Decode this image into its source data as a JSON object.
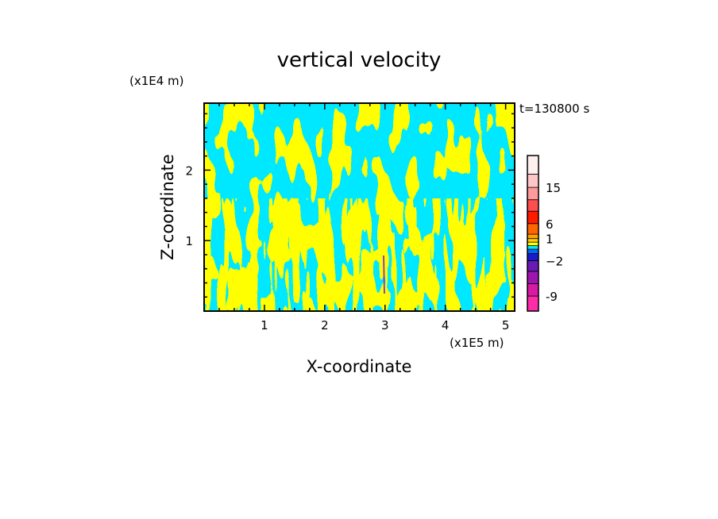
{
  "chart_data": {
    "type": "heatmap",
    "title": "vertical velocity",
    "xlabel": "X-coordinate",
    "ylabel": "Z-coordinate",
    "x_scale_label": "(x1E5 m)",
    "y_scale_label": "(x1E4 m)",
    "time_label": "t=130800 s",
    "xlim": [
      0,
      5.15
    ],
    "ylim": [
      0,
      2.95
    ],
    "x_ticks": [
      1,
      2,
      3,
      4,
      5
    ],
    "y_ticks": [
      1,
      2
    ],
    "x_tick_labels": [
      "1",
      "2",
      "3",
      "4",
      "5"
    ],
    "y_tick_labels": [
      "1",
      "2"
    ],
    "field_description_colors": {
      "positive": "#ffff00",
      "negative": "#00e8ff"
    },
    "colorbar": {
      "levels": [
        -12,
        -9,
        -6,
        -4,
        -2,
        -1,
        -0.5,
        0,
        0.5,
        1,
        3,
        6,
        9,
        12,
        15,
        18,
        21
      ],
      "colors": [
        "#ff2ca8",
        "#d81aa4",
        "#9e16b0",
        "#6a1ab4",
        "#1a1acc",
        "#0066ff",
        "#00e8ff",
        "#ffff00",
        "#ffd000",
        "#ffa000",
        "#ff6600",
        "#ff1a00",
        "#ff4e4e",
        "#ff9a9a",
        "#ffc8c8",
        "#fff0f0"
      ],
      "tick_labels": [
        {
          "value": -9,
          "label": "-9"
        },
        {
          "value": -2,
          "label": "−2"
        },
        {
          "value": 1,
          "label": "1"
        },
        {
          "value": 6,
          "label": "6"
        },
        {
          "value": 15,
          "label": "15"
        }
      ]
    }
  }
}
